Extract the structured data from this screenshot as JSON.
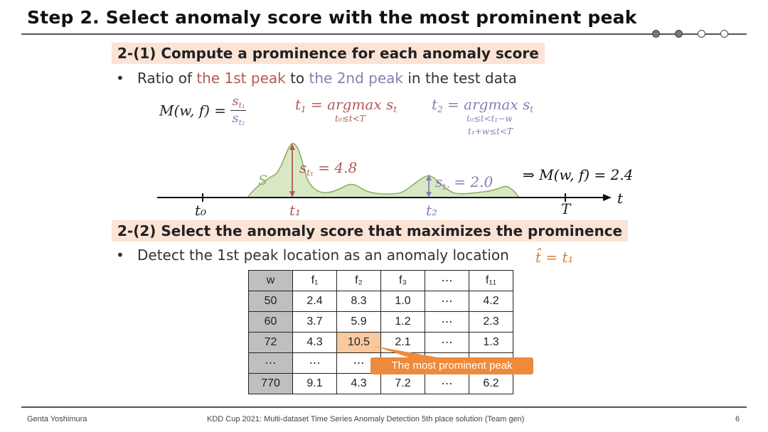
{
  "title": "Step 2. Select anomaly score with the most prominent peak",
  "progress_dots": [
    true,
    true,
    false,
    false
  ],
  "section1": {
    "heading": "2-(1) Compute a prominence for each anomaly score",
    "bullet_mark": "•",
    "bullet_parts": [
      "Ratio of ",
      "the 1st peak",
      " to ",
      "the 2nd peak",
      " in the test data"
    ]
  },
  "formulas": {
    "m_lhs": "M(w, f) =",
    "t1_lhs": "t",
    "t1_sub": "1",
    "t1_eq": " = argmax s",
    "t1_s_sub": "t",
    "t1_range": "t₀≤t<T",
    "t2_lhs": "t",
    "t2_sub": "2",
    "t2_eq": " = argmax s",
    "t2_s_sub": "t",
    "t2_range1": "t₀≤t<t₁−w",
    "t2_range2": "t₁+w≤t<T"
  },
  "diagram": {
    "series_label": "S",
    "peak1_label": "s",
    "peak1_sub": "t₁",
    "peak1_value": "= 4.8",
    "peak2_label": "s",
    "peak2_sub": "t₂",
    "peak2_value": "= 2.0",
    "result": "⇒ M(w, f) = 2.4",
    "axis_label": "t",
    "ticks": [
      "t₀",
      "t₁",
      "t₂",
      "T"
    ]
  },
  "section2": {
    "heading": "2-(2) Select the anomaly score that maximizes the prominence",
    "bullet_mark": "•",
    "bullet": "Detect the 1st peak location as an anomaly location",
    "formula": "t̂ = t₁"
  },
  "table": {
    "header": [
      "w",
      "f₁",
      "f₂",
      "f₃",
      "⋯",
      "f₁₁"
    ],
    "rows": [
      [
        "50",
        "2.4",
        "8.3",
        "1.0",
        "⋯",
        "4.2"
      ],
      [
        "60",
        "3.7",
        "5.9",
        "1.2",
        "⋯",
        "2.3"
      ],
      [
        "72",
        "4.3",
        "10.5",
        "2.1",
        "⋯",
        "1.3"
      ],
      [
        "⋯",
        "⋯",
        "⋯",
        "",
        "",
        ""
      ],
      [
        "770",
        "9.1",
        "4.3",
        "7.2",
        "⋯",
        "6.2"
      ]
    ],
    "callout": "The most prominent peak"
  },
  "colors": {
    "accent_red": "#b25a56",
    "accent_purple": "#8a7cb3",
    "accent_orange": "#e07b2a",
    "section_bg": "#fbe3d6",
    "curve_fill": "#d8e8c4",
    "curve_stroke": "#8db363"
  },
  "footer": {
    "author": "Genta Yoshimura",
    "event": "KDD Cup 2021: Multi-dataset Time Series Anomaly Detection 5th place solution (Team gen)",
    "page": "6"
  }
}
